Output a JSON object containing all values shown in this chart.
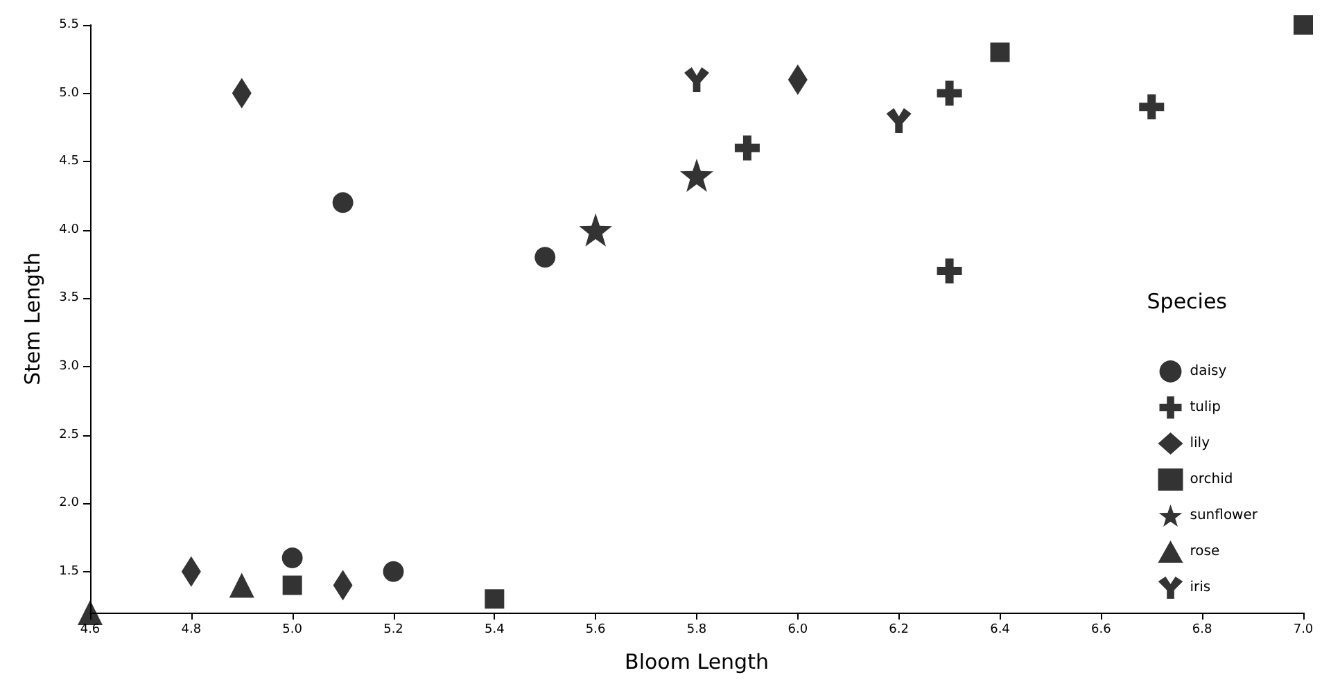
{
  "chart_data": {
    "type": "scatter",
    "xlabel": "Bloom Length",
    "ylabel": "Stem Length",
    "legend_title": "Species",
    "legend": "bottom right",
    "grid": false,
    "xlim": [
      4.6,
      7.0
    ],
    "xticks": [
      4.6,
      4.8,
      {
        "value": 5,
        "label": "5.0"
      },
      5.2,
      5.4,
      5.6,
      5.8,
      {
        "value": 6,
        "label": "6.0"
      },
      6.2,
      6.4,
      6.6,
      6.8,
      {
        "value": 7,
        "label": "7.0"
      }
    ],
    "ylim": [
      1.2,
      5.5
    ],
    "yticks": [
      1.5,
      {
        "value": 2,
        "label": "2.0"
      },
      2.5,
      {
        "value": 3,
        "label": "3.0"
      },
      3.5,
      {
        "value": 4,
        "label": "4.0"
      },
      4.5,
      {
        "value": 5,
        "label": "5.0"
      },
      5.5
    ],
    "series": [
      {
        "name": "daisy",
        "color": "#000000",
        "marker": "circle",
        "x": [
          5.1,
          5.5,
          5.0,
          5.2
        ],
        "values": [
          4.2,
          3.8,
          1.6,
          1.5
        ]
      },
      {
        "name": "tulip",
        "color": "#000000",
        "marker": "cross",
        "x": [
          5.9,
          6.3,
          6.3,
          6.7
        ],
        "values": [
          4.6,
          5.0,
          3.7,
          4.9
        ]
      },
      {
        "name": "lily",
        "color": "#000000",
        "marker": "diamond",
        "x": [
          4.9,
          6.0,
          4.8,
          5.1
        ],
        "values": [
          5.0,
          5.1,
          1.5,
          1.4
        ]
      },
      {
        "name": "orchid",
        "color": "#000000",
        "marker": "square",
        "x": [
          6.4,
          7.0,
          5.0,
          5.4
        ],
        "values": [
          5.3,
          5.5,
          1.4,
          1.3
        ]
      },
      {
        "name": "sunflower",
        "color": "#000000",
        "marker": "star",
        "x": [
          5.6,
          5.8
        ],
        "values": [
          4.0,
          4.4
        ]
      },
      {
        "name": "rose",
        "color": "#000000",
        "marker": "triangle",
        "x": [
          4.6,
          4.9
        ],
        "values": [
          1.2,
          1.4
        ]
      },
      {
        "name": "iris",
        "color": "#000000",
        "x": [
          5.8,
          6.2
        ],
        "values": [
          5.1,
          4.8
        ]
      }
    ]
  }
}
